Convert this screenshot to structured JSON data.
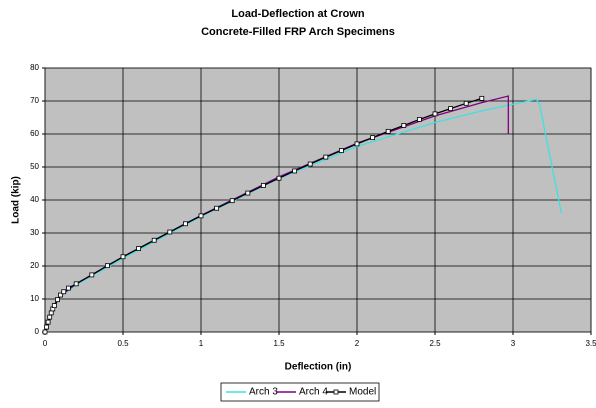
{
  "chart_data": {
    "type": "line",
    "title": "Load-Deflection at Crown",
    "subtitle": "Concrete-Filled FRP Arch Specimens",
    "x_label": "Deflection (in)",
    "y_label": "Load (kip)",
    "xlim": [
      0,
      3.5
    ],
    "xticks": [
      0,
      0.5,
      1,
      1.5,
      2,
      2.5,
      3,
      3.5
    ],
    "ylim": [
      0,
      80
    ],
    "yticks": [
      0,
      10,
      20,
      30,
      40,
      50,
      60,
      70,
      80
    ],
    "grid": true,
    "legend": "bottom",
    "series": [
      {
        "name": "Arch 3",
        "color": "#40e0e0",
        "x": [
          0,
          0.05,
          0.1,
          0.2,
          0.5,
          1.0,
          1.5,
          2.0,
          2.5,
          2.8,
          3.0,
          3.15,
          3.17,
          3.31
        ],
        "values": [
          0,
          6.5,
          10.8,
          14.3,
          22.3,
          35,
          46.5,
          56.2,
          63.5,
          67,
          69,
          70.5,
          69,
          36
        ]
      },
      {
        "name": "Arch 4",
        "color": "#800080",
        "x": [
          0,
          0.05,
          0.1,
          0.2,
          0.5,
          1.0,
          1.5,
          2.0,
          2.5,
          2.8,
          2.97,
          2.97
        ],
        "values": [
          0,
          7,
          11,
          14.6,
          22.8,
          35.3,
          47,
          57.2,
          65.5,
          69.5,
          71.5,
          60
        ]
      },
      {
        "name": "Model",
        "color": "#000000",
        "marker": "square",
        "x": [
          0,
          0.01,
          0.02,
          0.03,
          0.04,
          0.05,
          0.06,
          0.08,
          0.1,
          0.12,
          0.15,
          0.2,
          0.3,
          0.4,
          0.5,
          0.6,
          0.7,
          0.8,
          0.9,
          1.0,
          1.1,
          1.2,
          1.3,
          1.4,
          1.5,
          1.6,
          1.7,
          1.8,
          1.9,
          2.0,
          2.1,
          2.2,
          2.3,
          2.4,
          2.5,
          2.6,
          2.7,
          2.8
        ],
        "values": [
          0,
          1.5,
          3,
          4.5,
          5.8,
          7,
          8,
          9.8,
          11.2,
          12.2,
          13.3,
          14.6,
          17.3,
          20.1,
          22.8,
          25.3,
          27.8,
          30.3,
          32.8,
          35.2,
          37.5,
          39.8,
          42.1,
          44.4,
          46.6,
          48.8,
          50.9,
          53.0,
          55.0,
          57.0,
          58.9,
          60.8,
          62.6,
          64.4,
          66.1,
          67.7,
          69.3,
          70.8
        ]
      }
    ]
  }
}
